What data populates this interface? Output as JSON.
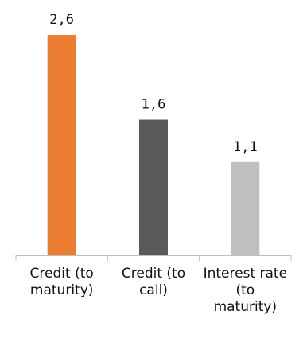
{
  "chart_data": {
    "type": "bar",
    "categories": [
      [
        "Credit (to",
        "maturity)"
      ],
      [
        "Credit (to",
        "call)"
      ],
      [
        "Interest rate",
        "(to",
        "maturity)"
      ]
    ],
    "values": [
      2.6,
      1.6,
      1.1
    ],
    "value_labels": [
      "2,6",
      "1,6",
      "1,1"
    ],
    "colors": [
      "#ed7d31",
      "#595959",
      "#bfbfbf"
    ],
    "title": "",
    "xlabel": "",
    "ylabel": "",
    "ylim": [
      0,
      2.6
    ],
    "grid": false,
    "legend": "none"
  }
}
